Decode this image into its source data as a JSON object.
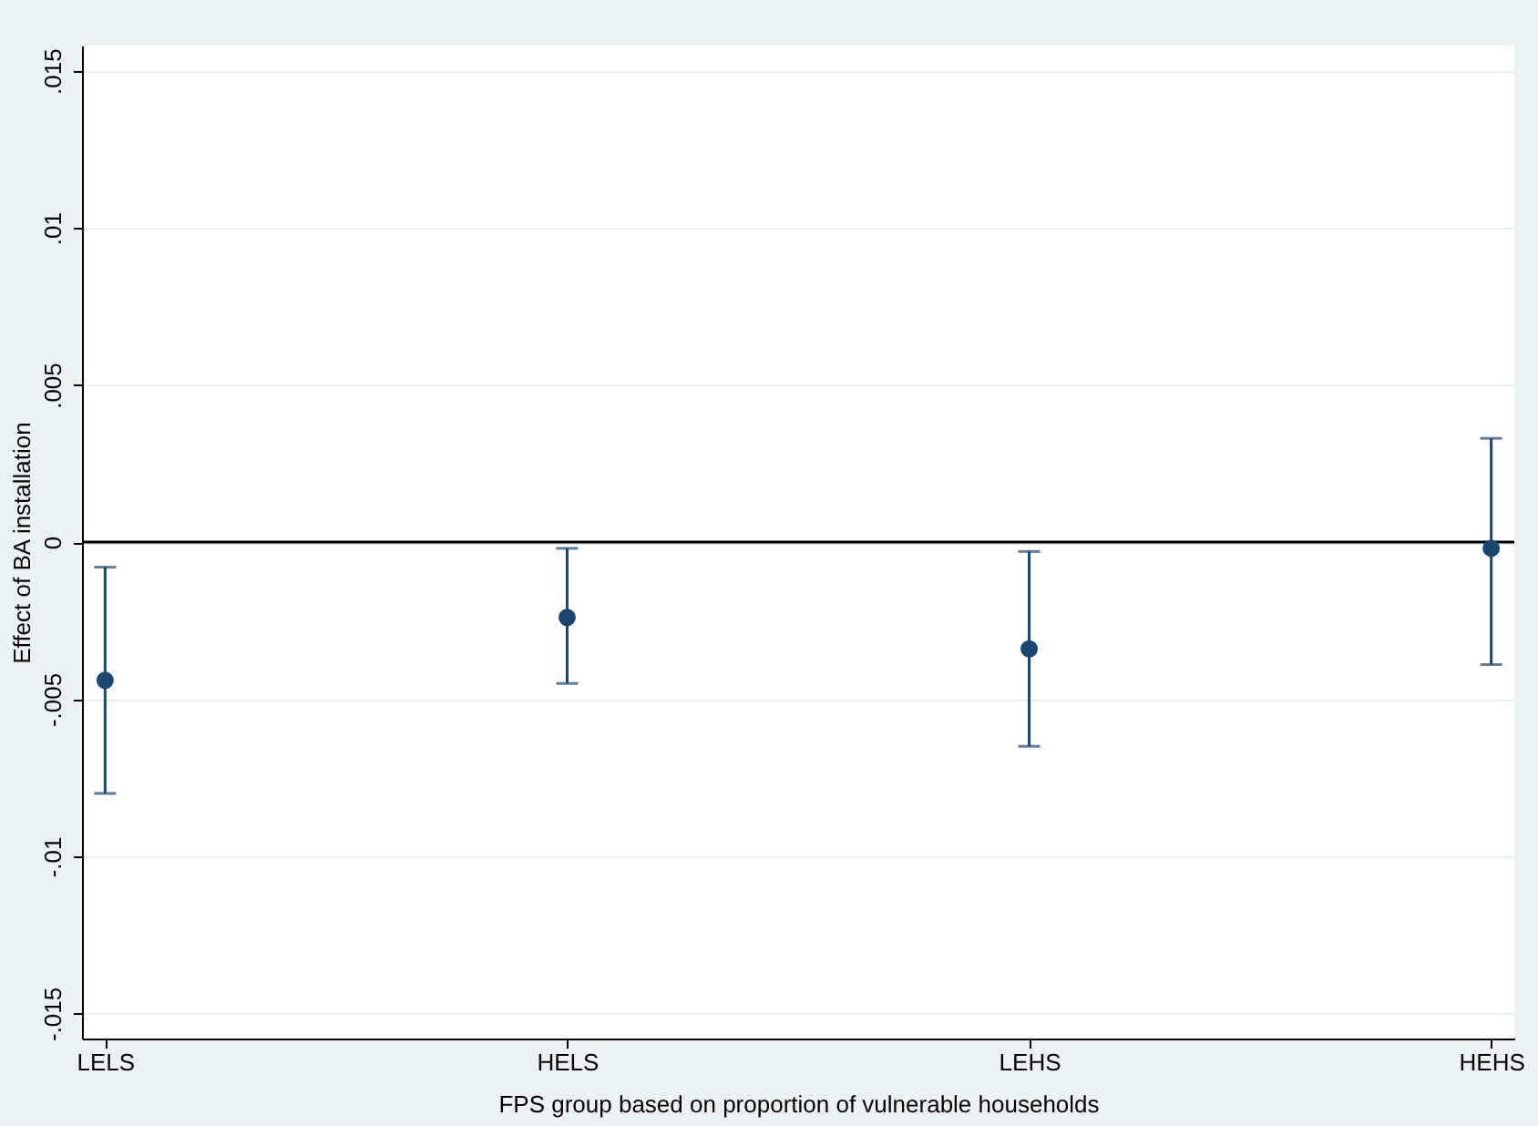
{
  "chart_data": {
    "type": "scatter",
    "xlabel": "FPS group based on proportion of vulnerable households",
    "ylabel": "Effect of BA installation",
    "categories": [
      "LELS",
      "HELS",
      "LEHS",
      "HEHS"
    ],
    "series": [
      {
        "color": "#1a476f",
        "values": [
          -0.0044,
          -0.0024,
          -0.0034,
          -0.0002
        ],
        "errors": [
          [
            -0.008,
            -0.0008
          ],
          [
            -0.0045,
            -0.0002
          ],
          [
            -0.0065,
            -0.0003
          ],
          [
            -0.0039,
            0.0033
          ]
        ]
      }
    ],
    "ylim": [
      -0.0158,
      0.0158
    ],
    "yticks": [
      {
        "value": -0.015,
        "label": "-.015"
      },
      {
        "value": -0.01,
        "label": "-.01"
      },
      {
        "value": -0.005,
        "label": "-.005"
      },
      0,
      {
        "value": 0.005,
        "label": ".005"
      },
      {
        "value": 0.01,
        "label": ".01"
      },
      {
        "value": 0.015,
        "label": ".015"
      }
    ],
    "ref_lines": [
      {
        "axis": "y",
        "value": 0,
        "color": "#000000"
      }
    ],
    "grid": "y",
    "marker": "circle"
  }
}
